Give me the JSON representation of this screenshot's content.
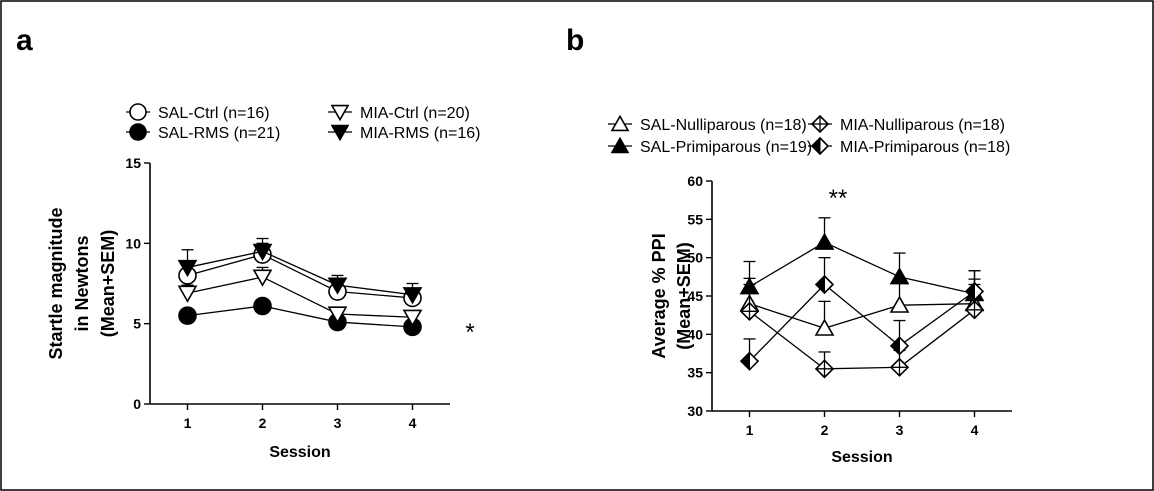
{
  "panels": [
    {
      "label": "a"
    },
    {
      "label": "b"
    }
  ],
  "chart_data": [
    {
      "type": "line",
      "panel": "a",
      "xlabel": "Session",
      "ylabel": [
        "Startle magnitude",
        "in Newtons",
        "(Mean+SEM)"
      ],
      "x": [
        1,
        2,
        3,
        4
      ],
      "xlim": [
        0.5,
        4.5
      ],
      "ylim": [
        0,
        15
      ],
      "yticks": [
        0,
        5,
        10,
        15
      ],
      "grid": false,
      "legend_position": "top",
      "annotation": "*",
      "series": [
        {
          "name": "SAL-Ctrl (n=16)",
          "marker": "circle-open",
          "values": [
            8.0,
            9.3,
            7.0,
            6.6
          ],
          "sem": [
            0.8,
            0.7,
            0.6,
            0.6
          ]
        },
        {
          "name": "SAL-RMS (n=21)",
          "marker": "circle-filled",
          "values": [
            5.5,
            6.1,
            5.1,
            4.8
          ],
          "sem": [
            0.3,
            0.3,
            0.3,
            0.3
          ]
        },
        {
          "name": "MIA-Ctrl (n=20)",
          "marker": "triangle-down-open",
          "values": [
            6.9,
            7.9,
            5.6,
            5.4
          ],
          "sem": [
            0.5,
            0.6,
            0.4,
            0.4
          ]
        },
        {
          "name": "MIA-RMS (n=16)",
          "marker": "triangle-down-filled",
          "values": [
            8.5,
            9.5,
            7.4,
            6.8
          ],
          "sem": [
            1.1,
            0.8,
            0.6,
            0.7
          ]
        }
      ]
    },
    {
      "type": "line",
      "panel": "b",
      "xlabel": "Session",
      "ylabel": [
        "Average % PPI",
        "(Mean+SEM)"
      ],
      "x": [
        1,
        2,
        3,
        4
      ],
      "xlim": [
        0.5,
        4.5
      ],
      "ylim": [
        30,
        60
      ],
      "yticks": [
        30,
        35,
        40,
        45,
        50,
        55,
        60
      ],
      "grid": false,
      "legend_position": "top",
      "annotation": "**",
      "series": [
        {
          "name": "SAL-Nulliparous (n=18)",
          "marker": "triangle-up-open",
          "values": [
            44.0,
            40.8,
            43.8,
            44.0
          ],
          "sem": [
            3.3,
            3.5,
            3.2,
            3.2
          ]
        },
        {
          "name": "SAL-Primiparous (n=19)",
          "marker": "triangle-up-filled",
          "values": [
            46.2,
            52.0,
            47.5,
            45.3
          ],
          "sem": [
            3.3,
            3.2,
            3.1,
            3.0
          ]
        },
        {
          "name": "MIA-Nulliparous (n=18)",
          "marker": "diamond-cross-open",
          "values": [
            43.0,
            35.5,
            35.7,
            43.2
          ],
          "sem": [
            3.5,
            2.2,
            2.2,
            3.3
          ]
        },
        {
          "name": "MIA-Primiparous (n=18)",
          "marker": "diamond-half-filled",
          "values": [
            36.5,
            46.5,
            38.5,
            45.6
          ],
          "sem": [
            2.9,
            3.5,
            3.3,
            2.7
          ]
        }
      ]
    }
  ]
}
